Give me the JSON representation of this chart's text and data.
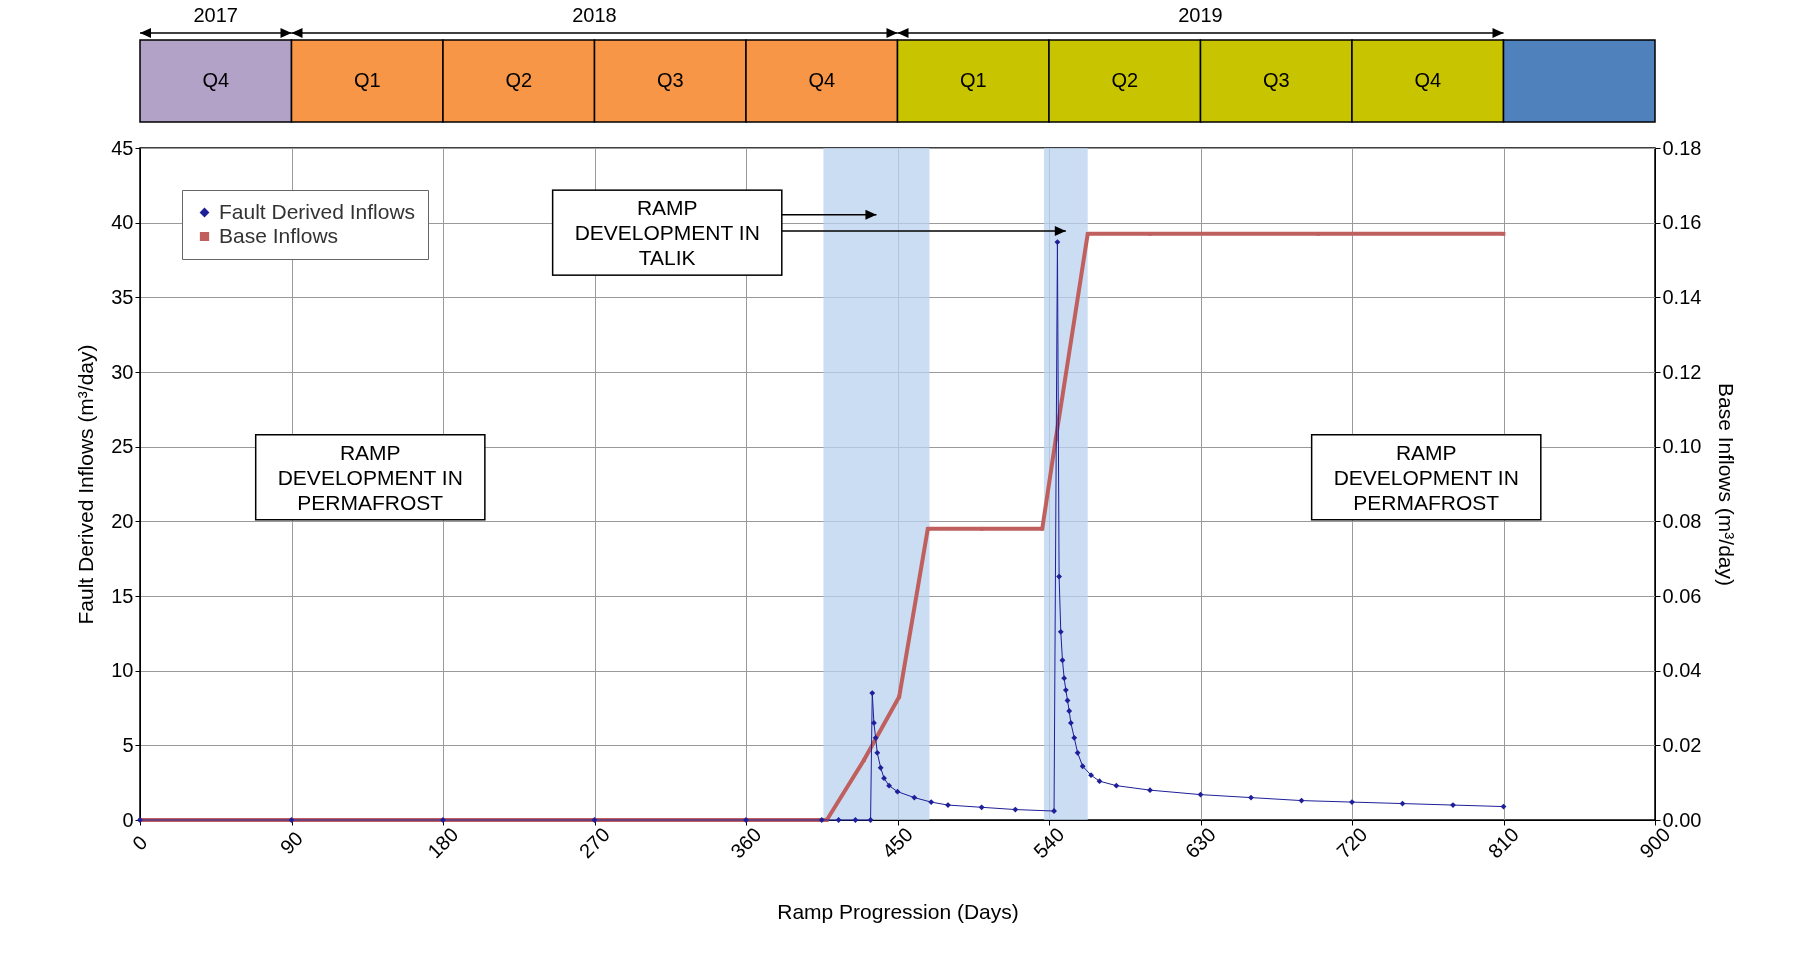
{
  "chart_data": [
    {
      "type": "bar",
      "orientation": "horizontal",
      "stacked": true,
      "categories": [
        null
      ],
      "xlim": [
        0,
        900
      ],
      "tick_labels": false,
      "annotations": [
        "2017",
        "2018",
        "2019"
      ],
      "series": [
        {
          "name": "Q4",
          "color": "#b3a2c7",
          "values": [
            90
          ]
        },
        {
          "name": "Q1",
          "color": "#f79646",
          "values": [
            90
          ]
        },
        {
          "name": "Q2",
          "color": "#f79646",
          "values": [
            90
          ]
        },
        {
          "name": "Q3",
          "color": "#f79646",
          "values": [
            90
          ]
        },
        {
          "name": "Q4",
          "color": "#f79646",
          "values": [
            90
          ]
        },
        {
          "name": "Q1",
          "color": "#c9c400",
          "values": [
            90
          ]
        },
        {
          "name": "Q2",
          "color": "#c9c400",
          "values": [
            90
          ]
        },
        {
          "name": "Q3",
          "color": "#c9c400",
          "values": [
            90
          ]
        },
        {
          "name": "Q4",
          "color": "#c9c400",
          "values": [
            90
          ]
        },
        {
          "color": "#4f81bd",
          "values": [
            90
          ]
        }
      ]
    },
    {
      "type": "line",
      "xlabel": "Ramp Progression (Days)",
      "ylabel": "Fault Derived Inflows (m³/day)",
      "y2label": "Base Inflows (m³/day)",
      "xlim": [
        0,
        900
      ],
      "xticks": [
        0,
        90,
        180,
        270,
        360,
        450,
        540,
        630,
        720,
        810,
        900
      ],
      "ylim": [
        0,
        45
      ],
      "yticks": [
        0,
        5,
        10,
        15,
        20,
        25,
        30,
        35,
        40,
        45
      ],
      "y2lim": [
        0,
        0.18
      ],
      "y2ticks": [
        {
          "value": 0,
          "label": "0.00"
        },
        {
          "value": 0.02,
          "label": "0.02"
        },
        {
          "value": 0.04,
          "label": "0.04"
        },
        {
          "value": 0.06,
          "label": "0.06"
        },
        {
          "value": 0.08,
          "label": "0.08"
        },
        {
          "value": 0.1,
          "label": "0.10"
        },
        {
          "value": 0.12,
          "label": "0.12"
        },
        {
          "value": 0.14,
          "label": "0.14"
        },
        {
          "value": 0.16,
          "label": "0.16"
        },
        {
          "value": 0.18,
          "label": "0.18"
        }
      ],
      "grid": true,
      "legend": "top left",
      "series": [
        {
          "name": "Fault Derived Inflows",
          "color": "#1f1f99",
          "marker": "diamond",
          "x": [
            0,
            90,
            180,
            270,
            360,
            405,
            415,
            425,
            434,
            435,
            436,
            437,
            438,
            440,
            442,
            445,
            450,
            460,
            470,
            480,
            500,
            520,
            543,
            545,
            546,
            547,
            548,
            549,
            550,
            551,
            552,
            553,
            555,
            557,
            560,
            565,
            570,
            580,
            600,
            630,
            660,
            690,
            720,
            750,
            780,
            810
          ],
          "values": [
            0,
            0,
            0,
            0,
            0,
            0,
            0,
            0,
            0,
            8.5,
            6.5,
            5.5,
            4.5,
            3.5,
            2.8,
            2.3,
            1.9,
            1.5,
            1.2,
            1.0,
            0.85,
            0.7,
            0.6,
            38.7,
            16.3,
            12.6,
            10.7,
            9.5,
            8.7,
            8.0,
            7.3,
            6.5,
            5.5,
            4.5,
            3.6,
            3.0,
            2.6,
            2.3,
            2.0,
            1.7,
            1.5,
            1.3,
            1.2,
            1.1,
            1.0,
            0.9
          ]
        },
        {
          "name": "Base Inflows",
          "color": "#c0605e",
          "marker": "square",
          "axis": "y2",
          "x": [
            0,
            90,
            180,
            270,
            360,
            408,
            430,
            451,
            468,
            500,
            536,
            544,
            563,
            600,
            700,
            810
          ],
          "values": [
            0,
            0,
            0,
            0,
            0,
            0,
            0.016,
            0.033,
            0.078,
            0.078,
            0.078,
            0.102,
            0.157,
            0.157,
            0.157,
            0.157
          ]
        }
      ],
      "bands": [
        {
          "axis": "x",
          "from": 406,
          "to": 469,
          "color": "#b9d1ee"
        },
        {
          "axis": "x",
          "from": 537,
          "to": 563,
          "color": "#b9d1ee"
        }
      ],
      "annotations": [
        "RAMP\nDEVELOPMENT IN\nTALIK",
        "RAMP\nDEVELOPMENT IN\nPERMAFROST",
        "RAMP\nDEVELOPMENT IN\nPERMAFROST"
      ]
    }
  ]
}
